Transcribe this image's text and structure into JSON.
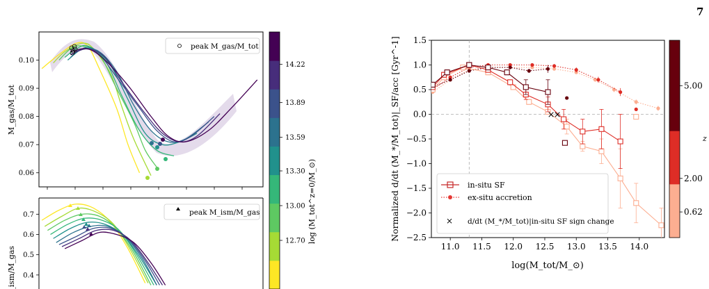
{
  "page_number": "7",
  "colors": {
    "in_situ": "#c62828",
    "ex_situ": "#e53935",
    "guide": "#aaaaaa"
  },
  "chart_data": [
    {
      "type": "line",
      "panel": "left-top",
      "ylabel": "M_gas/M_tot",
      "ylim": [
        0.055,
        0.11
      ],
      "yticks": [
        "0.06",
        "0.07",
        "0.08",
        "0.09",
        "0.10"
      ],
      "ytick_values": [
        0.06,
        0.07,
        0.08,
        0.09,
        0.1
      ],
      "legend": {
        "label": "peak M_gas/M_tot",
        "placement": "top-right",
        "marker": "open-circle"
      },
      "x_range": [
        10.55,
        14.45
      ],
      "series": [
        {
          "color": "#fde725",
          "x": [
            10.6,
            10.9,
            11.2,
            11.4,
            11.6,
            11.9,
            12.1,
            12.3
          ],
          "y": [
            0.097,
            0.102,
            0.106,
            0.105,
            0.097,
            0.083,
            0.07,
            0.06
          ]
        },
        {
          "color": "#a6db35",
          "x": [
            10.8,
            11.0,
            11.3,
            11.5,
            11.8,
            12.0,
            12.2,
            12.5
          ],
          "y": [
            0.099,
            0.103,
            0.106,
            0.104,
            0.095,
            0.083,
            0.072,
            0.059
          ]
        },
        {
          "color": "#5ec962",
          "x": [
            10.9,
            11.1,
            11.3,
            11.6,
            11.9,
            12.2,
            12.4,
            12.6
          ],
          "y": [
            0.1,
            0.104,
            0.105,
            0.102,
            0.09,
            0.078,
            0.068,
            0.062
          ]
        },
        {
          "color": "#35b779",
          "x": [
            11.0,
            11.2,
            11.4,
            11.7,
            12.0,
            12.3,
            12.6,
            12.9
          ],
          "y": [
            0.101,
            0.104,
            0.105,
            0.1,
            0.087,
            0.075,
            0.068,
            0.066
          ]
        },
        {
          "color": "#21918c",
          "x": [
            11.05,
            11.3,
            11.5,
            11.8,
            12.1,
            12.4,
            12.7,
            13.0,
            13.3
          ],
          "y": [
            0.1,
            0.104,
            0.104,
            0.098,
            0.086,
            0.074,
            0.07,
            0.071,
            0.074
          ]
        },
        {
          "color": "#2c728e",
          "x": [
            11.1,
            11.3,
            11.6,
            11.9,
            12.2,
            12.5,
            12.8,
            13.1,
            13.5
          ],
          "y": [
            0.101,
            0.104,
            0.103,
            0.096,
            0.084,
            0.075,
            0.071,
            0.072,
            0.078
          ]
        },
        {
          "color": "#3b528b",
          "x": [
            11.1,
            11.35,
            11.6,
            11.9,
            12.3,
            12.6,
            12.9,
            13.2,
            13.6
          ],
          "y": [
            0.102,
            0.104,
            0.102,
            0.094,
            0.083,
            0.075,
            0.071,
            0.073,
            0.08
          ]
        },
        {
          "color": "#472d7b",
          "x": [
            11.1,
            11.4,
            11.7,
            12.0,
            12.4,
            12.7,
            13.0,
            13.3,
            13.7
          ],
          "y": [
            0.102,
            0.104,
            0.101,
            0.092,
            0.081,
            0.074,
            0.071,
            0.073,
            0.081
          ]
        },
        {
          "color": "#440154",
          "x": [
            11.1,
            11.4,
            11.7,
            12.1,
            12.5,
            12.8,
            13.1,
            13.5,
            13.9,
            14.35
          ],
          "y": [
            0.103,
            0.104,
            0.1,
            0.091,
            0.08,
            0.073,
            0.071,
            0.075,
            0.083,
            0.093
          ]
        }
      ]
    },
    {
      "type": "line",
      "panel": "left-bottom",
      "ylabel": "M_ism/M_gas",
      "ylim": [
        0.3,
        0.78
      ],
      "yticks": [
        "0.4",
        "0.5",
        "0.6",
        "0.7"
      ],
      "ytick_values": [
        0.4,
        0.5,
        0.6,
        0.7
      ],
      "legend": {
        "label": "peak M_ism/M_gas",
        "placement": "top-right",
        "marker": "filled-triangle"
      },
      "x_range": [
        10.55,
        14.45
      ],
      "series": [
        {
          "color": "#fde725",
          "x": [
            10.6,
            10.9,
            11.2,
            11.5,
            11.8,
            12.1,
            12.4
          ],
          "y": [
            0.67,
            0.72,
            0.75,
            0.73,
            0.66,
            0.53,
            0.36
          ]
        },
        {
          "color": "#a6db35",
          "x": [
            10.65,
            10.95,
            11.25,
            11.55,
            11.85,
            12.15,
            12.45
          ],
          "y": [
            0.64,
            0.69,
            0.73,
            0.71,
            0.65,
            0.52,
            0.36
          ]
        },
        {
          "color": "#5ec962",
          "x": [
            10.7,
            11.0,
            11.3,
            11.6,
            11.9,
            12.2,
            12.5
          ],
          "y": [
            0.62,
            0.67,
            0.7,
            0.69,
            0.63,
            0.51,
            0.35
          ]
        },
        {
          "color": "#35b779",
          "x": [
            10.75,
            11.05,
            11.35,
            11.65,
            11.95,
            12.25,
            12.55
          ],
          "y": [
            0.6,
            0.65,
            0.68,
            0.67,
            0.62,
            0.5,
            0.35
          ]
        },
        {
          "color": "#21918c",
          "x": [
            10.8,
            11.1,
            11.4,
            11.7,
            12.0,
            12.3,
            12.6
          ],
          "y": [
            0.58,
            0.63,
            0.66,
            0.65,
            0.6,
            0.49,
            0.35
          ]
        },
        {
          "color": "#2c728e",
          "x": [
            10.85,
            11.15,
            11.45,
            11.75,
            12.05,
            12.35,
            12.6
          ],
          "y": [
            0.56,
            0.61,
            0.64,
            0.64,
            0.59,
            0.48,
            0.35
          ]
        },
        {
          "color": "#3b528b",
          "x": [
            10.9,
            11.2,
            11.5,
            11.8,
            12.1,
            12.4,
            12.65
          ],
          "y": [
            0.55,
            0.59,
            0.63,
            0.63,
            0.58,
            0.47,
            0.35
          ]
        },
        {
          "color": "#472d7b",
          "x": [
            10.95,
            11.25,
            11.55,
            11.85,
            12.15,
            12.45,
            12.7
          ],
          "y": [
            0.54,
            0.58,
            0.62,
            0.62,
            0.57,
            0.46,
            0.35
          ]
        },
        {
          "color": "#440154",
          "x": [
            11.0,
            11.3,
            11.6,
            11.9,
            12.2,
            12.5,
            12.75
          ],
          "y": [
            0.53,
            0.57,
            0.61,
            0.6,
            0.56,
            0.46,
            0.35
          ]
        }
      ]
    },
    {
      "type": "colorbar",
      "panel": "left-colorbar",
      "label": "log (M_tot^z=0/M_⊙)",
      "ticks": [
        "12.70",
        "13.00",
        "13.30",
        "13.59",
        "13.89",
        "14.22"
      ],
      "tick_values": [
        12.7,
        13.0,
        13.3,
        13.59,
        13.89,
        14.22
      ],
      "range": [
        12.28,
        14.5
      ],
      "colors": [
        "#fde725",
        "#a6db35",
        "#5ec962",
        "#35b779",
        "#21918c",
        "#2c728e",
        "#3b528b",
        "#472d7b",
        "#440154"
      ]
    },
    {
      "type": "line",
      "panel": "right",
      "xlabel": "log(M_tot/M_⊙)",
      "ylabel": "Normalized d/dt (M_*/M_tot)|_SF/acc [Gyr^-1]",
      "xlim": [
        10.7,
        14.4
      ],
      "ylim": [
        -2.5,
        1.5
      ],
      "xticks": [
        "11.0",
        "11.5",
        "12.0",
        "12.5",
        "13.0",
        "13.5",
        "14.0"
      ],
      "xtick_values": [
        11.0,
        11.5,
        12.0,
        12.5,
        13.0,
        13.5,
        14.0
      ],
      "yticks": [
        "1.5",
        "1.0",
        "0.5",
        "0.0",
        "−0.5",
        "−1.0",
        "−1.5",
        "−2.0",
        "−2.5"
      ],
      "ytick_values": [
        1.5,
        1.0,
        0.5,
        0.0,
        -0.5,
        -1.0,
        -1.5,
        -2.0,
        -2.5
      ],
      "vline": 11.3,
      "hline": 0.0,
      "legend": [
        {
          "label": "in-situ SF",
          "style": "solid-open-square"
        },
        {
          "label": "ex-situ accretion",
          "style": "dotted-filled-circle"
        },
        {
          "label": "d/dt (M_*/M_tot)|in-situ SF sign change",
          "style": "cross"
        }
      ],
      "legend_placement": "bottom-left",
      "in_situ_series": [
        {
          "z": "0.62",
          "color": "#fcae91",
          "x": [
            10.72,
            10.9,
            11.2,
            11.6,
            12.0,
            12.25,
            12.55,
            12.85,
            13.1,
            13.4,
            13.7,
            13.95,
            14.35
          ],
          "y": [
            0.5,
            0.75,
            0.95,
            0.85,
            0.55,
            0.25,
            0.05,
            -0.25,
            -0.65,
            -0.75,
            -1.3,
            -1.8,
            -2.25
          ],
          "err": [
            0.05,
            0.05,
            0.05,
            0.05,
            0.05,
            0.05,
            0.05,
            0.15,
            0.1,
            0.25,
            0.6,
            0.4,
            0.35
          ]
        },
        {
          "z": "2.00",
          "color": "#de2d26",
          "x": [
            10.72,
            10.9,
            11.3,
            11.6,
            11.95,
            12.2,
            12.55,
            12.8,
            13.1,
            13.4,
            13.7
          ],
          "y": [
            0.55,
            0.8,
            1.0,
            0.9,
            0.65,
            0.4,
            0.2,
            -0.1,
            -0.35,
            -0.3,
            -0.55
          ],
          "err": [
            0.05,
            0.05,
            0.05,
            0.05,
            0.05,
            0.1,
            0.15,
            0.2,
            0.25,
            0.4,
            0.55
          ]
        },
        {
          "z": "5.00",
          "color": "#67000d",
          "x": [
            10.72,
            10.95,
            11.3,
            11.6,
            11.9,
            12.2,
            12.55
          ],
          "y": [
            0.6,
            0.85,
            1.0,
            0.95,
            0.85,
            0.55,
            0.45
          ],
          "err": [
            0.05,
            0.05,
            0.05,
            0.05,
            0.05,
            0.15,
            0.25
          ]
        }
      ],
      "in_situ_isolated": [
        {
          "color": "#fcae91",
          "x": 13.95,
          "y": -0.05
        },
        {
          "color": "#67000d",
          "x": 12.82,
          "y": -0.58
        }
      ],
      "ex_situ_series": [
        {
          "z": "0.62",
          "color": "#fcae91",
          "x": [
            10.72,
            11.0,
            11.3,
            11.6,
            11.95,
            12.3,
            12.65,
            13.0,
            13.3,
            13.6,
            13.95,
            14.3
          ],
          "y": [
            0.45,
            0.7,
            0.9,
            0.95,
            0.95,
            0.95,
            0.92,
            0.85,
            0.7,
            0.5,
            0.25,
            0.12
          ],
          "err": [
            0.03,
            0.03,
            0.03,
            0.03,
            0.03,
            0.03,
            0.03,
            0.03,
            0.04,
            0.05,
            0.05,
            0.05
          ]
        },
        {
          "z": "2.00",
          "color": "#de2d26",
          "x": [
            10.72,
            11.0,
            11.3,
            11.6,
            11.95,
            12.3,
            12.65,
            13.0,
            13.35,
            13.7
          ],
          "y": [
            0.5,
            0.75,
            0.95,
            1.0,
            1.0,
            1.0,
            0.98,
            0.9,
            0.7,
            0.45
          ],
          "err": [
            0.03,
            0.03,
            0.03,
            0.03,
            0.03,
            0.03,
            0.04,
            0.05,
            0.06,
            0.08
          ]
        },
        {
          "z": "5.00",
          "color": "#67000d",
          "x": [
            10.72,
            11.0,
            11.3,
            11.6,
            11.95,
            12.25,
            12.55
          ],
          "y": [
            0.55,
            0.7,
            0.88,
            0.95,
            0.95,
            0.88,
            0.92
          ],
          "err": [
            0.03,
            0.03,
            0.03,
            0.03,
            0.03,
            0.04,
            0.08
          ]
        }
      ],
      "ex_situ_isolated": [
        {
          "color": "#de2d26",
          "x": 13.95,
          "y": 0.1
        },
        {
          "color": "#67000d",
          "x": 12.85,
          "y": 0.33
        }
      ],
      "sign_changes": [
        {
          "x": 12.6,
          "y": 0.0
        },
        {
          "x": 12.7,
          "y": 0.0
        }
      ]
    },
    {
      "type": "colorbar",
      "panel": "right-colorbar",
      "label": "z",
      "ticks": [
        "5.00",
        "2.00",
        "0.62"
      ],
      "segments": [
        {
          "color": "#67000d",
          "from": 0.0,
          "to": 0.46
        },
        {
          "color": "#de2d26",
          "from": 0.46,
          "to": 0.73
        },
        {
          "color": "#fcae91",
          "from": 0.73,
          "to": 1.0
        }
      ],
      "tick_positions": [
        0.23,
        0.7,
        0.87
      ]
    }
  ]
}
